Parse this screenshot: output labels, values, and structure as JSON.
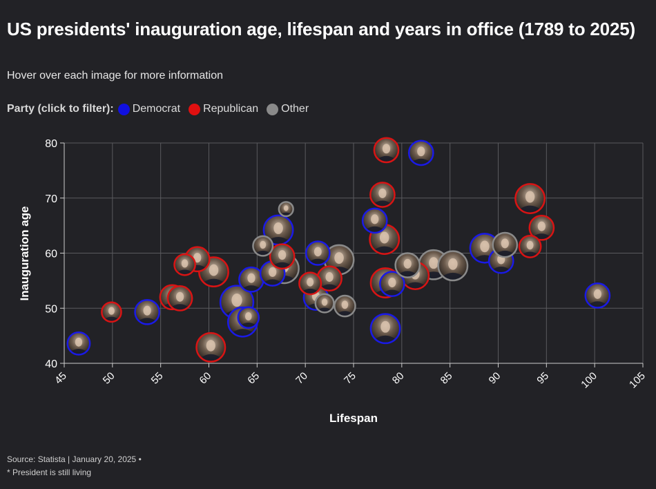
{
  "title": "US presidents' inauguration age, lifespan and years in office (1789 to 2025)",
  "subtitle": "Hover over each image for more information",
  "legend": {
    "label": "Party (click to filter):",
    "items": [
      {
        "label": "Democrat",
        "color": "#1010e0"
      },
      {
        "label": "Republican",
        "color": "#e01010"
      },
      {
        "label": "Other",
        "color": "#8a8a8a"
      }
    ]
  },
  "footer": {
    "source": "Source: Statista | January 20, 2025 •",
    "note": "* President is still living"
  },
  "colors": {
    "Democrat": "#1a1ae6",
    "Republican": "#d81414",
    "Other": "#8a8a8a",
    "grid": "#5a5a5e"
  },
  "chart_data": {
    "type": "scatter",
    "title": "US presidents' inauguration age, lifespan and years in office (1789 to 2025)",
    "xlabel": "Lifespan",
    "ylabel": "Inauguration age",
    "xlim": [
      45,
      105
    ],
    "ylim": [
      40,
      80
    ],
    "x_ticks": [
      "45",
      "50",
      "55",
      "60",
      "65",
      "70",
      "75",
      "80",
      "85",
      "90",
      "95",
      "100",
      "105"
    ],
    "y_ticks": [
      "40",
      "50",
      "60",
      "70",
      "80"
    ],
    "size_encoding": "years in office",
    "points": [
      {
        "x": 46.5,
        "y": 43.6,
        "party": "Democrat",
        "years": 2.8
      },
      {
        "x": 49.9,
        "y": 49.3,
        "party": "Republican",
        "years": 1.4
      },
      {
        "x": 53.6,
        "y": 49.3,
        "party": "Democrat",
        "years": 4
      },
      {
        "x": 56.2,
        "y": 52.0,
        "party": "Republican",
        "years": 4
      },
      {
        "x": 57.0,
        "y": 51.8,
        "party": "Republican",
        "years": 4
      },
      {
        "x": 57.5,
        "y": 57.9,
        "party": "Republican",
        "years": 2
      },
      {
        "x": 58.8,
        "y": 58.9,
        "party": "Republican",
        "years": 4
      },
      {
        "x": 60.5,
        "y": 56.6,
        "party": "Republican",
        "years": 8
      },
      {
        "x": 60.2,
        "y": 42.9,
        "party": "Republican",
        "years": 7.5
      },
      {
        "x": 62.9,
        "y": 51.1,
        "party": "Democrat",
        "years": 12
      },
      {
        "x": 63.5,
        "y": 47.5,
        "party": "Democrat",
        "years": 8
      },
      {
        "x": 64.1,
        "y": 48.3,
        "party": "Democrat",
        "years": 2
      },
      {
        "x": 64.4,
        "y": 55.2,
        "party": "Democrat",
        "years": 4
      },
      {
        "x": 65.6,
        "y": 61.3,
        "party": "Other",
        "years": 1.5
      },
      {
        "x": 66.6,
        "y": 56.3,
        "party": "Democrat",
        "years": 4
      },
      {
        "x": 67.2,
        "y": 64.2,
        "party": "Democrat",
        "years": 8
      },
      {
        "x": 67.8,
        "y": 57.2,
        "party": "Other",
        "years": 8
      },
      {
        "x": 67.6,
        "y": 59.4,
        "party": "Republican",
        "years": 4
      },
      {
        "x": 68.0,
        "y": 68.0,
        "party": "Other",
        "years": 0.1
      },
      {
        "x": 70.5,
        "y": 54.5,
        "party": "Republican",
        "years": 2.5
      },
      {
        "x": 71.3,
        "y": 60.0,
        "party": "Democrat",
        "years": 3.5
      },
      {
        "x": 71.1,
        "y": 51.9,
        "party": "Democrat",
        "years": 4
      },
      {
        "x": 72.0,
        "y": 50.9,
        "party": "Other",
        "years": 1
      },
      {
        "x": 72.5,
        "y": 55.4,
        "party": "Republican",
        "years": 4
      },
      {
        "x": 73.5,
        "y": 58.8,
        "party": "Other",
        "years": 8
      },
      {
        "x": 74.1,
        "y": 50.4,
        "party": "Other",
        "years": 2
      },
      {
        "x": 77.2,
        "y": 65.9,
        "party": "Democrat",
        "years": 4
      },
      {
        "x": 78.2,
        "y": 62.5,
        "party": "Republican",
        "years": 8
      },
      {
        "x": 78.4,
        "y": 78.7,
        "party": "Republican",
        "years": 4
      },
      {
        "x": 78.0,
        "y": 70.6,
        "party": "Republican",
        "years": 4
      },
      {
        "x": 78.3,
        "y": 46.3,
        "party": "Democrat",
        "years": 8
      },
      {
        "x": 78.3,
        "y": 54.6,
        "party": "Republican",
        "years": 8
      },
      {
        "x": 79.0,
        "y": 54.4,
        "party": "Democrat",
        "years": 4
      },
      {
        "x": 80.6,
        "y": 57.8,
        "party": "Other",
        "years": 4
      },
      {
        "x": 81.4,
        "y": 55.9,
        "party": "Republican",
        "years": 6
      },
      {
        "x": 82.0,
        "y": 78.2,
        "party": "Democrat",
        "years": 4
      },
      {
        "x": 83.3,
        "y": 57.9,
        "party": "Other",
        "years": 8
      },
      {
        "x": 85.3,
        "y": 57.7,
        "party": "Other",
        "years": 8
      },
      {
        "x": 88.6,
        "y": 60.9,
        "party": "Democrat",
        "years": 7.8
      },
      {
        "x": 90.3,
        "y": 58.6,
        "party": "Democrat",
        "years": 4
      },
      {
        "x": 90.7,
        "y": 61.5,
        "party": "Other",
        "years": 4
      },
      {
        "x": 93.3,
        "y": 61.2,
        "party": "Republican",
        "years": 2.4
      },
      {
        "x": 93.3,
        "y": 69.9,
        "party": "Republican",
        "years": 8
      },
      {
        "x": 94.5,
        "y": 64.6,
        "party": "Republican",
        "years": 4
      },
      {
        "x": 100.3,
        "y": 52.3,
        "party": "Democrat",
        "years": 4
      }
    ]
  }
}
